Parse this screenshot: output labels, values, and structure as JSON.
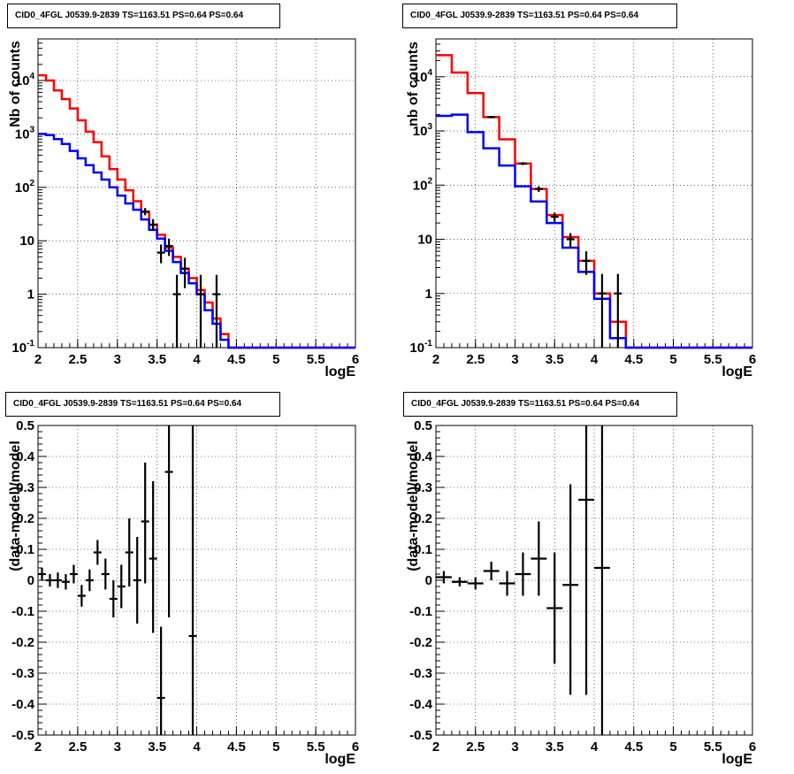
{
  "chart_data": [
    {
      "type": "line",
      "title": "CID0_4FGL J0539.9-2839 TS=1163.51 PS=0.64 PS=0.64",
      "xlabel": "logE",
      "ylabel": "Nb of counts",
      "xlim": [
        2,
        6
      ],
      "ylim": [
        0.1,
        60000
      ],
      "yscale": "log",
      "grid": true,
      "xticks": [
        "2",
        "2.5",
        "3",
        "3.5",
        "4",
        "4.5",
        "5",
        "5.5",
        "6"
      ],
      "yticks": [
        {
          "value": 0.1,
          "label": "10-1",
          "base": "10",
          "exp": "-1"
        },
        {
          "value": 1,
          "label": "1"
        },
        {
          "value": 10,
          "label": "10"
        },
        {
          "value": 100,
          "label": "10 2",
          "base": "10",
          "exp": "2"
        },
        {
          "value": 1000,
          "label": "10 3",
          "base": "10",
          "exp": "3"
        },
        {
          "value": 10000,
          "label": "10 4",
          "base": "10",
          "exp": "4"
        }
      ],
      "bin_edges": [
        2.0,
        2.1,
        2.2,
        2.3,
        2.4,
        2.5,
        2.6,
        2.7,
        2.8,
        2.9,
        3.0,
        3.1,
        3.2,
        3.3,
        3.4,
        3.5,
        3.6,
        3.7,
        3.8,
        3.9,
        4.0,
        4.1,
        4.2,
        4.3,
        4.4,
        4.5,
        4.6,
        4.7,
        4.8,
        4.9,
        5.0,
        5.1,
        5.2,
        5.3,
        5.4,
        5.5,
        5.6,
        5.7,
        5.8,
        5.9,
        6.0
      ],
      "series": [
        {
          "color": "#ff0000",
          "values": [
            12500,
            10000,
            6500,
            4500,
            3000,
            1800,
            1100,
            700,
            380,
            220,
            140,
            88,
            55,
            35,
            20,
            13,
            7.5,
            5,
            3,
            2,
            1.2,
            0.7,
            0.35,
            0.18,
            0.1,
            0.1,
            0.1,
            0.1,
            0.1,
            0.1,
            0.1,
            0.1,
            0.1,
            0.1,
            0.1,
            0.1,
            0.1,
            0.1,
            0.1,
            0.1
          ]
        },
        {
          "color": "#0000ff",
          "values": [
            1000,
            950,
            800,
            650,
            480,
            350,
            260,
            190,
            140,
            100,
            70,
            50,
            38,
            25,
            16,
            11,
            6.5,
            4,
            2.5,
            1.6,
            1,
            0.5,
            0.28,
            0.14,
            0.1,
            0.1,
            0.1,
            0.1,
            0.1,
            0.1,
            0.1,
            0.1,
            0.1,
            0.1,
            0.1,
            0.1,
            0.1,
            0.1,
            0.1,
            0.1
          ]
        }
      ],
      "points": [
        {
          "x": 3.35,
          "y": 35,
          "ylo": 30,
          "yhi": 41
        },
        {
          "x": 3.45,
          "y": 20,
          "ylo": 15.5,
          "yhi": 25.5
        },
        {
          "x": 3.55,
          "y": 6,
          "ylo": 3.8,
          "yhi": 8.5
        },
        {
          "x": 3.65,
          "y": 8,
          "ylo": 5.2,
          "yhi": 11
        },
        {
          "x": 3.75,
          "y": 1,
          "ylo": 0.1,
          "yhi": 2.3
        },
        {
          "x": 3.85,
          "y": 3,
          "ylo": 1.3,
          "yhi": 4.8
        },
        {
          "x": 4.05,
          "y": 1,
          "ylo": 0.1,
          "yhi": 2.3
        },
        {
          "x": 4.25,
          "y": 1,
          "ylo": 0.1,
          "yhi": 2.3
        }
      ]
    },
    {
      "type": "line",
      "title": "CID0_4FGL J0539.9-2839 TS=1163.51 PS=0.64 PS=0.64",
      "xlabel": "logE",
      "ylabel": "nb of counts",
      "xlim": [
        2,
        6
      ],
      "ylim": [
        0.1,
        50000
      ],
      "yscale": "log",
      "grid": true,
      "xticks": [
        "2",
        "2.5",
        "3",
        "3.5",
        "4",
        "4.5",
        "5",
        "5.5",
        "6"
      ],
      "yticks": [
        {
          "value": 0.1,
          "label": "10-1",
          "base": "10",
          "exp": "-1"
        },
        {
          "value": 1,
          "label": "1"
        },
        {
          "value": 10,
          "label": "10"
        },
        {
          "value": 100,
          "label": "10 2",
          "base": "10",
          "exp": "2"
        },
        {
          "value": 1000,
          "label": "10 3",
          "base": "10",
          "exp": "3"
        },
        {
          "value": 10000,
          "label": "10 4",
          "base": "10",
          "exp": "4"
        }
      ],
      "bin_edges": [
        2.0,
        2.2,
        2.4,
        2.6,
        2.8,
        3.0,
        3.2,
        3.4,
        3.6,
        3.8,
        4.0,
        4.2,
        4.4,
        4.6,
        4.8,
        5.0,
        5.2,
        5.4,
        5.6,
        5.8,
        6.0
      ],
      "series": [
        {
          "color": "#ff0000",
          "values": [
            25000,
            12000,
            5000,
            1800,
            700,
            250,
            85,
            28,
            11,
            4,
            1,
            0.3,
            0.1,
            0.1,
            0.1,
            0.1,
            0.1,
            0.1,
            0.1,
            0.1
          ]
        },
        {
          "color": "#0000ff",
          "values": [
            1900,
            2000,
            950,
            480,
            230,
            95,
            50,
            20,
            7,
            2.5,
            0.8,
            0.15,
            0.1,
            0.1,
            0.1,
            0.1,
            0.1,
            0.1,
            0.1,
            0.1
          ]
        }
      ],
      "points": [
        {
          "x": 2.7,
          "y": 1800,
          "ylo": 1720,
          "yhi": 1880
        },
        {
          "x": 3.1,
          "y": 250,
          "ylo": 235,
          "yhi": 265
        },
        {
          "x": 3.3,
          "y": 85,
          "ylo": 75,
          "yhi": 95
        },
        {
          "x": 3.5,
          "y": 26,
          "ylo": 21,
          "yhi": 31
        },
        {
          "x": 3.7,
          "y": 10,
          "ylo": 7,
          "yhi": 13
        },
        {
          "x": 3.9,
          "y": 4,
          "ylo": 2.2,
          "yhi": 6
        },
        {
          "x": 4.1,
          "y": 1,
          "ylo": 0.1,
          "yhi": 2.3
        },
        {
          "x": 4.3,
          "y": 1,
          "ylo": 0.1,
          "yhi": 2.3
        }
      ]
    },
    {
      "type": "scatter",
      "title": "CID0_4FGL J0539.9-2839 TS=1163.51 PS=0.64 PS=0.64",
      "xlabel": "logE",
      "ylabel": "(data-model)/model",
      "xlim": [
        2,
        6
      ],
      "ylim": [
        -0.5,
        0.5
      ],
      "grid": true,
      "xticks": [
        "2",
        "2.5",
        "3",
        "3.5",
        "4",
        "4.5",
        "5",
        "5.5",
        "6"
      ],
      "yticks": [
        "-0.5",
        "-0.4",
        "-0.3",
        "-0.2",
        "-0.1",
        "0",
        "0.1",
        "0.2",
        "0.3",
        "0.4",
        "0.5"
      ],
      "xerr": 0.05,
      "points": [
        {
          "x": 2.05,
          "y": 0.02,
          "ylo": 0.0,
          "yhi": 0.04
        },
        {
          "x": 2.15,
          "y": 0.0,
          "ylo": -0.02,
          "yhi": 0.02
        },
        {
          "x": 2.25,
          "y": 0.0,
          "ylo": -0.025,
          "yhi": 0.025
        },
        {
          "x": 2.35,
          "y": -0.005,
          "ylo": -0.03,
          "yhi": 0.02
        },
        {
          "x": 2.45,
          "y": 0.02,
          "ylo": -0.01,
          "yhi": 0.05
        },
        {
          "x": 2.55,
          "y": -0.05,
          "ylo": -0.085,
          "yhi": -0.015
        },
        {
          "x": 2.65,
          "y": 0.0,
          "ylo": -0.035,
          "yhi": 0.035
        },
        {
          "x": 2.75,
          "y": 0.09,
          "ylo": 0.05,
          "yhi": 0.13
        },
        {
          "x": 2.85,
          "y": 0.02,
          "ylo": -0.03,
          "yhi": 0.07
        },
        {
          "x": 2.95,
          "y": -0.06,
          "ylo": -0.12,
          "yhi": 0.0
        },
        {
          "x": 3.05,
          "y": -0.02,
          "ylo": -0.09,
          "yhi": 0.05
        },
        {
          "x": 3.15,
          "y": 0.09,
          "ylo": -0.02,
          "yhi": 0.2
        },
        {
          "x": 3.25,
          "y": 0.0,
          "ylo": -0.14,
          "yhi": 0.14
        },
        {
          "x": 3.35,
          "y": 0.19,
          "ylo": -0.01,
          "yhi": 0.38
        },
        {
          "x": 3.45,
          "y": 0.07,
          "ylo": -0.17,
          "yhi": 0.32
        },
        {
          "x": 3.55,
          "y": -0.38,
          "ylo": -0.5,
          "yhi": -0.15
        },
        {
          "x": 3.65,
          "y": 0.35,
          "ylo": -0.12,
          "yhi": 0.5
        },
        {
          "x": 3.95,
          "y": -0.18,
          "ylo": -0.5,
          "yhi": 0.5
        }
      ]
    },
    {
      "type": "scatter",
      "title": "CID0_4FGL J0539.9-2839 TS=1163.51 PS=0.64 PS=0.64",
      "xlabel": "logE",
      "ylabel": "(data-model)/model",
      "xlim": [
        2,
        6
      ],
      "ylim": [
        -0.5,
        0.5
      ],
      "grid": true,
      "xticks": [
        "2",
        "2.5",
        "3",
        "3.5",
        "4",
        "4.5",
        "5",
        "5.5",
        "6"
      ],
      "yticks": [
        "-0.5",
        "-0.4",
        "-0.3",
        "-0.2",
        "-0.1",
        "0",
        "0.1",
        "0.2",
        "0.3",
        "0.4",
        "0.5"
      ],
      "xerr": 0.1,
      "points": [
        {
          "x": 2.1,
          "y": 0.01,
          "ylo": -0.01,
          "yhi": 0.03
        },
        {
          "x": 2.3,
          "y": -0.005,
          "ylo": -0.02,
          "yhi": 0.01
        },
        {
          "x": 2.5,
          "y": -0.01,
          "ylo": -0.03,
          "yhi": 0.01
        },
        {
          "x": 2.7,
          "y": 0.03,
          "ylo": 0.0,
          "yhi": 0.06
        },
        {
          "x": 2.9,
          "y": -0.01,
          "ylo": -0.05,
          "yhi": 0.03
        },
        {
          "x": 3.1,
          "y": 0.02,
          "ylo": -0.05,
          "yhi": 0.09
        },
        {
          "x": 3.3,
          "y": 0.07,
          "ylo": -0.05,
          "yhi": 0.19
        },
        {
          "x": 3.5,
          "y": -0.09,
          "ylo": -0.27,
          "yhi": 0.09
        },
        {
          "x": 3.7,
          "y": -0.015,
          "ylo": -0.37,
          "yhi": 0.31
        },
        {
          "x": 3.9,
          "y": 0.26,
          "ylo": -0.37,
          "yhi": 0.5
        },
        {
          "x": 4.1,
          "y": 0.04,
          "ylo": -0.5,
          "yhi": 0.5
        }
      ]
    }
  ]
}
